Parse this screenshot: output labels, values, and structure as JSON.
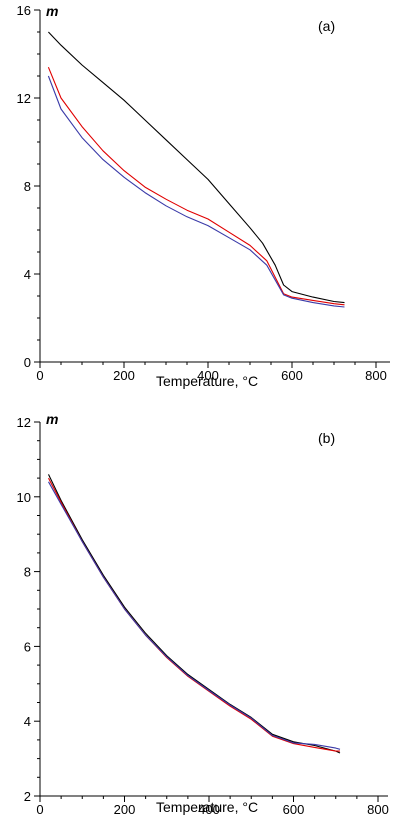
{
  "chart_data": [
    {
      "type": "line",
      "panel_label": "(a)",
      "xlabel": "Temperature, °C",
      "ylabel": "m",
      "xlim": [
        0,
        800
      ],
      "ylim": [
        0,
        16
      ],
      "xticks": [
        0,
        200,
        400,
        600,
        800
      ],
      "yticks": [
        0,
        4,
        8,
        12,
        16
      ],
      "grid": false,
      "series": [
        {
          "color": "#000000",
          "x": [
            20,
            50,
            100,
            150,
            200,
            250,
            300,
            350,
            400,
            450,
            500,
            530,
            560,
            580,
            600,
            650,
            700,
            725
          ],
          "y": [
            15.0,
            14.4,
            13.5,
            12.7,
            11.9,
            11.0,
            10.1,
            9.2,
            8.3,
            7.2,
            6.1,
            5.4,
            4.4,
            3.5,
            3.2,
            2.95,
            2.75,
            2.7
          ]
        },
        {
          "color": "#e00000",
          "x": [
            20,
            50,
            100,
            150,
            200,
            250,
            300,
            350,
            400,
            450,
            500,
            540,
            580,
            600,
            650,
            700,
            725
          ],
          "y": [
            13.4,
            12.0,
            10.7,
            9.6,
            8.7,
            7.95,
            7.4,
            6.9,
            6.5,
            5.9,
            5.3,
            4.6,
            3.1,
            2.95,
            2.8,
            2.65,
            2.6
          ]
        },
        {
          "color": "#3a3aa8",
          "x": [
            20,
            50,
            100,
            150,
            200,
            250,
            300,
            350,
            400,
            450,
            500,
            540,
            580,
            600,
            650,
            700,
            725
          ],
          "y": [
            13.0,
            11.5,
            10.2,
            9.2,
            8.4,
            7.7,
            7.1,
            6.6,
            6.2,
            5.65,
            5.1,
            4.4,
            3.05,
            2.9,
            2.7,
            2.55,
            2.5
          ]
        }
      ]
    },
    {
      "type": "line",
      "panel_label": "(b)",
      "xlabel": "Temperature, °C",
      "ylabel": "m",
      "xlim": [
        0,
        800
      ],
      "ylim": [
        2,
        12
      ],
      "xticks": [
        0,
        200,
        400,
        600,
        800
      ],
      "yticks": [
        2,
        4,
        6,
        8,
        10,
        12
      ],
      "grid": false,
      "series": [
        {
          "color": "#000000",
          "x": [
            20,
            50,
            100,
            150,
            200,
            250,
            300,
            350,
            400,
            450,
            500,
            550,
            600,
            650,
            700,
            710
          ],
          "y": [
            10.6,
            9.9,
            8.85,
            7.9,
            7.05,
            6.35,
            5.75,
            5.25,
            4.85,
            4.45,
            4.1,
            3.65,
            3.45,
            3.35,
            3.2,
            3.15
          ]
        },
        {
          "color": "#e00000",
          "x": [
            20,
            50,
            100,
            150,
            200,
            250,
            300,
            350,
            400,
            450,
            500,
            550,
            600,
            650,
            700,
            710
          ],
          "y": [
            10.5,
            9.85,
            8.8,
            7.85,
            7.0,
            6.3,
            5.7,
            5.2,
            4.8,
            4.4,
            4.05,
            3.6,
            3.4,
            3.3,
            3.2,
            3.2
          ]
        },
        {
          "color": "#3a3aa8",
          "x": [
            20,
            50,
            100,
            150,
            200,
            250,
            300,
            350,
            400,
            450,
            500,
            550,
            600,
            650,
            700,
            710
          ],
          "y": [
            10.4,
            9.8,
            8.8,
            7.85,
            7.0,
            6.3,
            5.72,
            5.22,
            4.82,
            4.43,
            4.08,
            3.62,
            3.42,
            3.38,
            3.28,
            3.25
          ]
        }
      ]
    }
  ]
}
